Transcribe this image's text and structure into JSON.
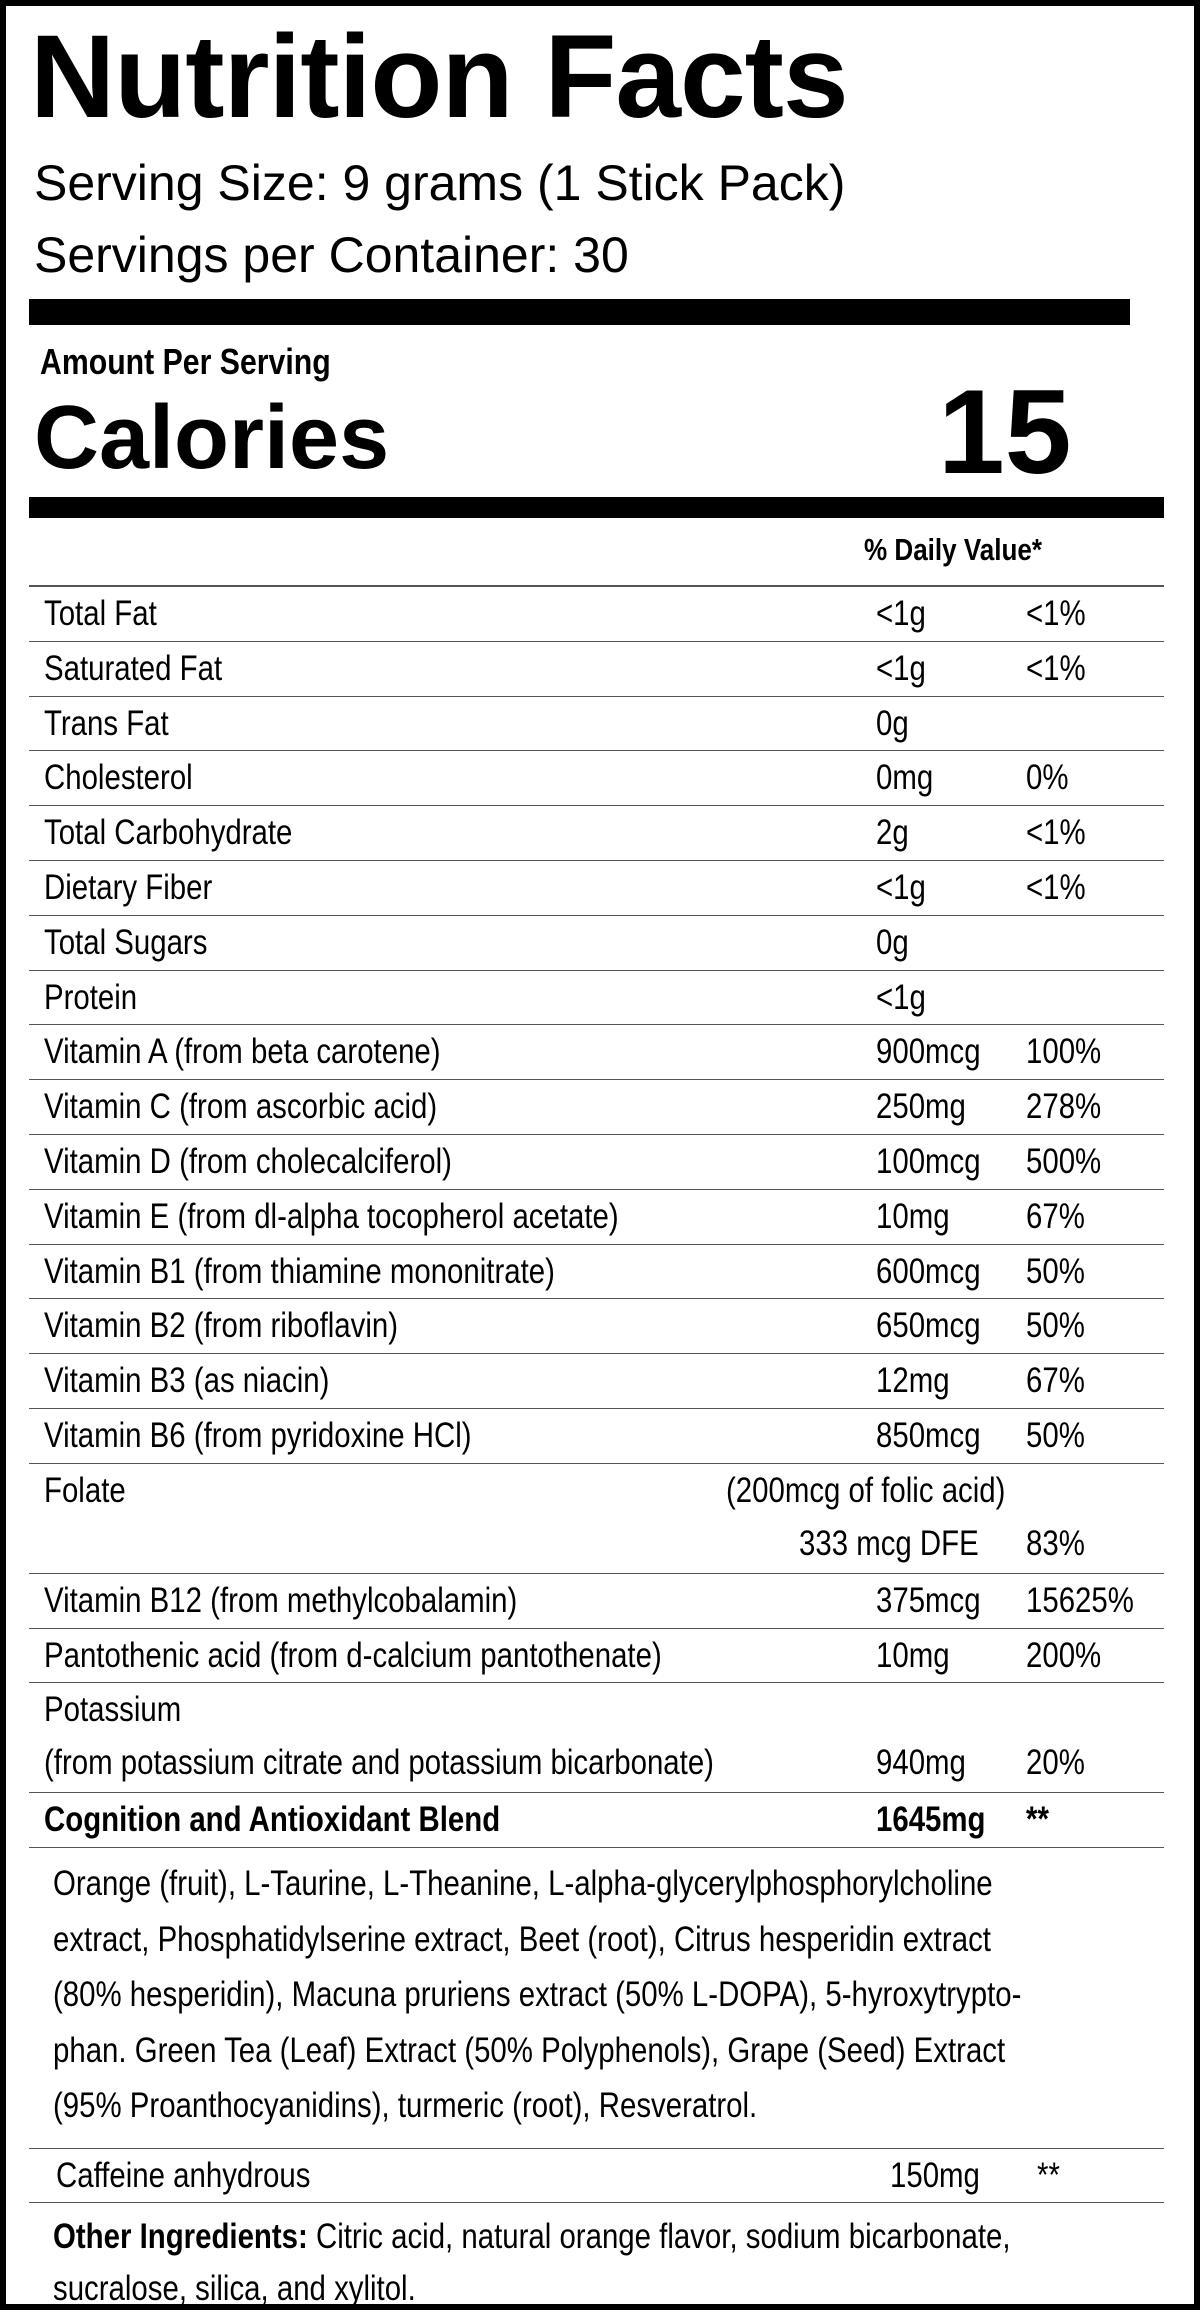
{
  "title": "Nutrition Facts",
  "serving_size": "Serving Size: 9 grams (1 Stick Pack)",
  "servings_per_container": "Servings per Container: 30",
  "amount_per_serving": "Amount Per Serving",
  "calories_label": "Calories",
  "calories_value": "15",
  "daily_value_header": "% Daily Value*",
  "rows": [
    {
      "label": "Total Fat",
      "amount": "<1g",
      "dv": "<1%"
    },
    {
      "label": "Saturated Fat",
      "amount": "<1g",
      "dv": "<1%"
    },
    {
      "label": "Trans Fat",
      "amount": "0g",
      "dv": ""
    },
    {
      "label": "Cholesterol",
      "amount": "0mg",
      "dv": "0%"
    },
    {
      "label": "Total Carbohydrate",
      "amount": "2g",
      "dv": "<1%"
    },
    {
      "label": "Dietary Fiber",
      "amount": "<1g",
      "dv": "<1%"
    },
    {
      "label": "Total Sugars",
      "amount": "0g",
      "dv": ""
    },
    {
      "label": "Protein",
      "amount": "<1g",
      "dv": ""
    },
    {
      "label": "Vitamin A (from beta carotene)",
      "amount": "900mcg",
      "dv": "100%"
    },
    {
      "label": "Vitamin C (from ascorbic acid)",
      "amount": "250mg",
      "dv": "278%"
    },
    {
      "label": "Vitamin D (from cholecalciferol)",
      "amount": "100mcg",
      "dv": "500%"
    },
    {
      "label": "Vitamin E (from dl-alpha tocopherol acetate)",
      "amount": "10mg",
      "dv": "67%"
    },
    {
      "label": "Vitamin B1 (from thiamine mononitrate)",
      "amount": "600mcg",
      "dv": "50%"
    },
    {
      "label": "Vitamin B2 (from riboflavin)",
      "amount": "650mcg",
      "dv": "50%"
    },
    {
      "label": "Vitamin B3 (as niacin)",
      "amount": "12mg",
      "dv": "67%"
    },
    {
      "label": "Vitamin B6 (from pyridoxine HCl)",
      "amount": "850mcg",
      "dv": "50%"
    }
  ],
  "folate": {
    "label": "Folate",
    "note": "(200mcg of folic acid)",
    "amount": "333 mcg DFE",
    "dv": "83%"
  },
  "rows2": [
    {
      "label": "Vitamin B12 (from methylcobalamin)",
      "amount": "375mcg",
      "dv": "15625%"
    },
    {
      "label": "Pantothenic acid (from d-calcium pantothenate)",
      "amount": "10mg",
      "dv": "200%"
    }
  ],
  "potassium": {
    "label": "Potassium",
    "sublabel": "(from potassium citrate and potassium bicarbonate)",
    "amount": "940mg",
    "dv": "20%"
  },
  "blend": {
    "label": "Cognition and Antioxidant Blend",
    "amount": "1645mg",
    "dv": "**"
  },
  "blend_ingredients": [
    "Orange (fruit), L-Taurine, L-Theanine, L-alpha-glycerylphosphorylcholine",
    "extract, Phosphatidylserine extract, Beet (root), Citrus hesperidin extract",
    "(80% hesperidin), Macuna pruriens extract (50% L-DOPA), 5-hyroxytrypto-",
    "phan. Green Tea (Leaf) Extract (50% Polyphenols), Grape (Seed) Extract",
    "(95% Proanthocyanidins), turmeric (root), Resveratrol."
  ],
  "caffeine": {
    "label": "Caffeine anhydrous",
    "amount": "150mg",
    "dv": "**"
  },
  "other_ingredients": {
    "label": "Other Ingredients:",
    "lines": [
      " Citric acid, natural orange flavor, sodium bicarbonate,",
      "sucralose, silica, and xylitol."
    ]
  }
}
